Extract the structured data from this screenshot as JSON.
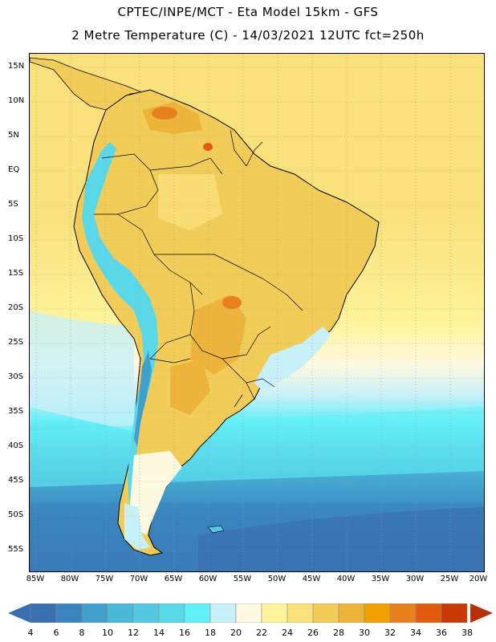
{
  "header": {
    "line1": "CPTEC/INPE/MCT -  Eta Model 15km - GFS",
    "line2": "2 Metre Temperature (C) - 14/03/2021 12UTC fct=250h"
  },
  "map": {
    "lat_labels": [
      "15N",
      "10N",
      "5N",
      "EQ",
      "5S",
      "10S",
      "15S",
      "20S",
      "25S",
      "30S",
      "35S",
      "40S",
      "45S",
      "50S",
      "55S"
    ],
    "lon_labels": [
      "85W",
      "80W",
      "75W",
      "70W",
      "65W",
      "60W",
      "55W",
      "50W",
      "45W",
      "40W",
      "35W",
      "30W",
      "25W",
      "20W"
    ]
  },
  "colorbar": {
    "labels": [
      "4",
      "6",
      "8",
      "10",
      "12",
      "14",
      "16",
      "18",
      "20",
      "22",
      "24",
      "26",
      "28",
      "30",
      "32",
      "34",
      "36",
      "38"
    ],
    "colors": [
      "#3a6fb0",
      "#3b84c0",
      "#40a0cc",
      "#4ab8d8",
      "#54c8e0",
      "#5ad8e8",
      "#64f0f8",
      "#c8f0f8",
      "#fdf8e0",
      "#fdf39a",
      "#f8e07a",
      "#f2cc58",
      "#ecb43a",
      "#f0a000",
      "#e88020",
      "#e05a10",
      "#c83a08"
    ],
    "low_color": "#3a6fb0",
    "high_color": "#b83008"
  }
}
